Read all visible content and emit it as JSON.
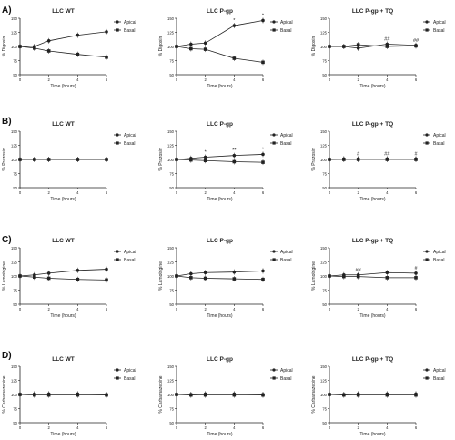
{
  "row_labels": [
    "A)",
    "B)",
    "C)",
    "D)"
  ],
  "chart_data": [
    {
      "type": "line",
      "panel": "A",
      "title": "LLC WT",
      "xlabel": "Time (hours)",
      "ylabel": "% Digoxin",
      "x": [
        0,
        1,
        2,
        4,
        6
      ],
      "xticks": [
        0,
        2,
        4,
        6
      ],
      "ylim": [
        50,
        150
      ],
      "yticks": [
        50,
        75,
        100,
        125,
        150
      ],
      "series": [
        {
          "name": "Apical",
          "marker": "circle",
          "values": [
            100,
            100,
            110,
            120,
            126
          ]
        },
        {
          "name": "Basal",
          "marker": "square",
          "values": [
            100,
            97,
            92,
            86,
            81
          ]
        }
      ],
      "annotations": [],
      "legend": "right"
    },
    {
      "type": "line",
      "panel": "A",
      "title": "LLC P-gp",
      "xlabel": "Time (hours)",
      "ylabel": "% Digoxin",
      "x": [
        0,
        1,
        2,
        4,
        6
      ],
      "xticks": [
        0,
        2,
        4,
        6
      ],
      "ylim": [
        50,
        150
      ],
      "yticks": [
        50,
        75,
        100,
        125,
        150
      ],
      "series": [
        {
          "name": "Apical",
          "marker": "circle",
          "values": [
            100,
            104,
            106,
            137,
            146
          ]
        },
        {
          "name": "Basal",
          "marker": "square",
          "values": [
            100,
            96,
            95,
            79,
            72
          ]
        }
      ],
      "annotations": [
        {
          "x": 4,
          "text": "*"
        },
        {
          "x": 6,
          "text": "*"
        }
      ],
      "legend": "right"
    },
    {
      "type": "line",
      "panel": "A",
      "title": "LLC P-gp + TQ",
      "xlabel": "Time (hours)",
      "ylabel": "% Digoxin",
      "x": [
        0,
        1,
        2,
        4,
        6
      ],
      "xticks": [
        0,
        2,
        4,
        6
      ],
      "ylim": [
        50,
        150
      ],
      "yticks": [
        50,
        75,
        100,
        125,
        150
      ],
      "series": [
        {
          "name": "Apical",
          "marker": "circle",
          "values": [
            100,
            100,
            97,
            104,
            102
          ]
        },
        {
          "name": "Basal",
          "marker": "square",
          "values": [
            100,
            100,
            103,
            100,
            101
          ]
        }
      ],
      "annotations": [
        {
          "x": 4,
          "text": "##"
        },
        {
          "x": 6,
          "text": "##"
        }
      ],
      "legend": "right"
    },
    {
      "type": "line",
      "panel": "B",
      "title": "LLC WT",
      "xlabel": "Time (hours)",
      "ylabel": "% Prazosin",
      "x": [
        0,
        1,
        2,
        4,
        6
      ],
      "xticks": [
        0,
        2,
        4,
        6
      ],
      "ylim": [
        50,
        150
      ],
      "yticks": [
        50,
        75,
        100,
        125,
        150
      ],
      "series": [
        {
          "name": "Apical",
          "marker": "circle",
          "values": [
            100,
            100,
            100,
            100,
            100
          ]
        },
        {
          "name": "Basal",
          "marker": "square",
          "values": [
            100,
            100,
            100,
            100,
            100
          ]
        }
      ],
      "annotations": [],
      "legend": "right"
    },
    {
      "type": "line",
      "panel": "B",
      "title": "LLC P-gp",
      "xlabel": "Time (hours)",
      "ylabel": "% Prazosin",
      "x": [
        0,
        1,
        2,
        4,
        6
      ],
      "xticks": [
        0,
        2,
        4,
        6
      ],
      "ylim": [
        50,
        150
      ],
      "yticks": [
        50,
        75,
        100,
        125,
        150
      ],
      "series": [
        {
          "name": "Apical",
          "marker": "circle",
          "values": [
            100,
            102,
            104,
            107,
            109
          ]
        },
        {
          "name": "Basal",
          "marker": "square",
          "values": [
            100,
            99,
            98,
            96,
            95
          ]
        }
      ],
      "annotations": [
        {
          "x": 2,
          "text": "*"
        },
        {
          "x": 4,
          "text": "**"
        },
        {
          "x": 6,
          "text": "*"
        }
      ],
      "legend": "right"
    },
    {
      "type": "line",
      "panel": "B",
      "title": "LLC P-gp + TQ",
      "xlabel": "Time (hours)",
      "ylabel": "% Prazosin",
      "x": [
        0,
        1,
        2,
        4,
        6
      ],
      "xticks": [
        0,
        2,
        4,
        6
      ],
      "ylim": [
        50,
        150
      ],
      "yticks": [
        50,
        75,
        100,
        125,
        150
      ],
      "series": [
        {
          "name": "Apical",
          "marker": "circle",
          "values": [
            100,
            101,
            101,
            101,
            101
          ]
        },
        {
          "name": "Basal",
          "marker": "square",
          "values": [
            100,
            100,
            100,
            100,
            100
          ]
        }
      ],
      "annotations": [
        {
          "x": 2,
          "text": "#"
        },
        {
          "x": 4,
          "text": "##"
        },
        {
          "x": 6,
          "text": "#"
        }
      ],
      "legend": "right"
    },
    {
      "type": "line",
      "panel": "C",
      "title": "LLC WT",
      "xlabel": "Time (hours)",
      "ylabel": "% Lamotrigine",
      "x": [
        0,
        1,
        2,
        4,
        6
      ],
      "xticks": [
        0,
        2,
        4,
        6
      ],
      "ylim": [
        50,
        150
      ],
      "yticks": [
        50,
        75,
        100,
        125,
        150
      ],
      "series": [
        {
          "name": "Apical",
          "marker": "circle",
          "values": [
            100,
            102,
            105,
            110,
            112
          ]
        },
        {
          "name": "Basal",
          "marker": "square",
          "values": [
            100,
            98,
            96,
            94,
            93
          ]
        }
      ],
      "annotations": [],
      "legend": "right"
    },
    {
      "type": "line",
      "panel": "C",
      "title": "LLC P-gp",
      "xlabel": "Time (hours)",
      "ylabel": "% Lamotrigine",
      "x": [
        0,
        1,
        2,
        4,
        6
      ],
      "xticks": [
        0,
        2,
        4,
        6
      ],
      "ylim": [
        50,
        150
      ],
      "yticks": [
        50,
        75,
        100,
        125,
        150
      ],
      "series": [
        {
          "name": "Apical",
          "marker": "circle",
          "values": [
            100,
            104,
            106,
            107,
            109
          ]
        },
        {
          "name": "Basal",
          "marker": "square",
          "values": [
            100,
            97,
            96,
            95,
            94
          ]
        }
      ],
      "annotations": [],
      "legend": "right"
    },
    {
      "type": "line",
      "panel": "C",
      "title": "LLC P-gp + TQ",
      "xlabel": "Time (hours)",
      "ylabel": "% Lamotrigine",
      "x": [
        0,
        1,
        2,
        4,
        6
      ],
      "xticks": [
        0,
        2,
        4,
        6
      ],
      "ylim": [
        50,
        150
      ],
      "yticks": [
        50,
        75,
        100,
        125,
        150
      ],
      "series": [
        {
          "name": "Apical",
          "marker": "circle",
          "values": [
            100,
            102,
            102,
            106,
            105
          ]
        },
        {
          "name": "Basal",
          "marker": "square",
          "values": [
            100,
            99,
            99,
            97,
            97
          ]
        }
      ],
      "annotations": [
        {
          "x": 2,
          "text": "##"
        },
        {
          "x": 6,
          "text": "#"
        }
      ],
      "legend": "right"
    },
    {
      "type": "line",
      "panel": "D",
      "title": "LLC WT",
      "xlabel": "Time (hours)",
      "ylabel": "% Carbamazepine",
      "x": [
        0,
        1,
        2,
        4,
        6
      ],
      "xticks": [
        0,
        2,
        4,
        6
      ],
      "ylim": [
        50,
        150
      ],
      "yticks": [
        50,
        75,
        100,
        125,
        150
      ],
      "series": [
        {
          "name": "Apical",
          "marker": "circle",
          "values": [
            100,
            101,
            101,
            101,
            100
          ]
        },
        {
          "name": "Basal",
          "marker": "square",
          "values": [
            100,
            99,
            99,
            99,
            99
          ]
        }
      ],
      "annotations": [],
      "legend": "right"
    },
    {
      "type": "line",
      "panel": "D",
      "title": "LLC P-gp",
      "xlabel": "Time (hours)",
      "ylabel": "% Carbamazepine",
      "x": [
        0,
        1,
        2,
        4,
        6
      ],
      "xticks": [
        0,
        2,
        4,
        6
      ],
      "ylim": [
        50,
        150
      ],
      "yticks": [
        50,
        75,
        100,
        125,
        150
      ],
      "series": [
        {
          "name": "Apical",
          "marker": "circle",
          "values": [
            100,
            100,
            101,
            101,
            100
          ]
        },
        {
          "name": "Basal",
          "marker": "square",
          "values": [
            100,
            99,
            99,
            99,
            99
          ]
        }
      ],
      "annotations": [],
      "legend": "right"
    },
    {
      "type": "line",
      "panel": "D",
      "title": "LLC P-gp + TQ",
      "xlabel": "Time (hours)",
      "ylabel": "% Carbamazepine",
      "x": [
        0,
        1,
        2,
        4,
        6
      ],
      "xticks": [
        0,
        2,
        4,
        6
      ],
      "ylim": [
        50,
        150
      ],
      "yticks": [
        50,
        75,
        100,
        125,
        150
      ],
      "series": [
        {
          "name": "Apical",
          "marker": "circle",
          "values": [
            100,
            100,
            101,
            101,
            101
          ]
        },
        {
          "name": "Basal",
          "marker": "square",
          "values": [
            100,
            99,
            99,
            99,
            99
          ]
        }
      ],
      "annotations": [],
      "legend": "right"
    }
  ]
}
